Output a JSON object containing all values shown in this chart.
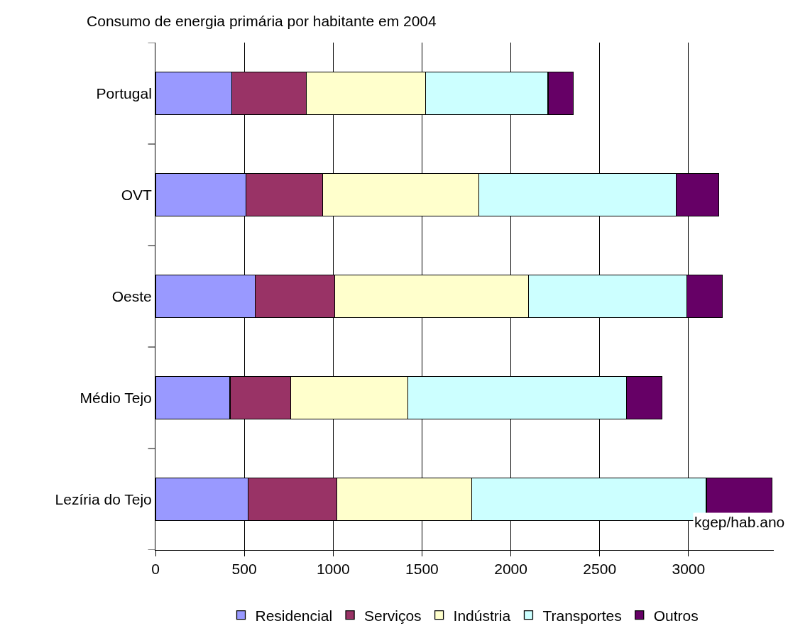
{
  "chart_data": {
    "type": "bar",
    "orientation": "horizontal",
    "stacked": true,
    "title": "Consumo de energia primária por habitante em 2004",
    "categories": [
      "Portugal",
      "OVT",
      "Oeste",
      "Médio Tejo",
      "Lezíria do Tejo"
    ],
    "series": [
      {
        "name": "Residencial",
        "color": "#9999ff",
        "values": [
          430,
          510,
          560,
          420,
          520
        ]
      },
      {
        "name": "Serviços",
        "color": "#993366",
        "values": [
          420,
          430,
          450,
          340,
          500
        ]
      },
      {
        "name": "Indústria",
        "color": "#ffffcc",
        "values": [
          670,
          880,
          1090,
          660,
          760
        ]
      },
      {
        "name": "Transportes",
        "color": "#ccffff",
        "values": [
          690,
          1110,
          890,
          1230,
          1320
        ]
      },
      {
        "name": "Outros",
        "color": "#660066",
        "values": [
          140,
          240,
          200,
          200,
          370
        ]
      }
    ],
    "xlim": [
      0,
      3480
    ],
    "xticks": [
      0,
      500,
      1000,
      1500,
      2000,
      2500,
      3000
    ],
    "grid": "x",
    "legend": "bottom",
    "annotations": [
      "kgep/hab.ano"
    ]
  }
}
